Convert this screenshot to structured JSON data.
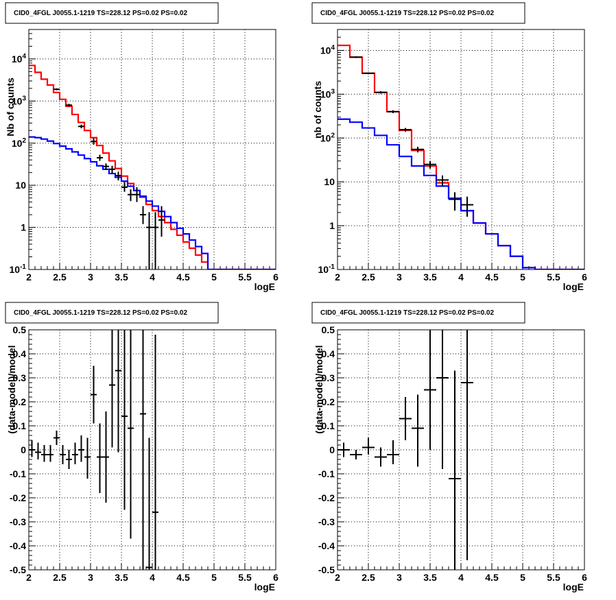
{
  "chart_data": [
    {
      "id": "p1",
      "type": "line",
      "title": "CID0_4FGL J0055.1-1219 TS=228.12 PS=0.02 PS=0.02",
      "xlabel": "logE",
      "ylabel": "Nb of counts",
      "yscale": "log",
      "xlim": [
        2,
        6
      ],
      "ylim": [
        0.1,
        50000
      ],
      "grid": true,
      "x_ticks": [
        "2",
        "2.5",
        "3",
        "3.5",
        "4",
        "4.5",
        "5",
        "5.5",
        "6"
      ],
      "y_ticks": [
        "10^-1",
        "1",
        "10",
        "10^2",
        "10^3",
        "10^4"
      ],
      "bin_edges": [
        2.0,
        2.1,
        2.2,
        2.3,
        2.4,
        2.5,
        2.6,
        2.7,
        2.8,
        2.9,
        3.0,
        3.1,
        3.2,
        3.3,
        3.4,
        3.5,
        3.6,
        3.7,
        3.8,
        3.9,
        4.0,
        4.1,
        4.2,
        4.3,
        4.4,
        4.5,
        4.6,
        4.7,
        4.8,
        4.9,
        5.0,
        5.1,
        5.2,
        5.3,
        5.4,
        5.5,
        5.6,
        5.7,
        5.8,
        5.9,
        6.0
      ],
      "series": [
        {
          "name": "",
          "color": "#ff0000",
          "style": "step",
          "values": [
            7000,
            4800,
            3300,
            2400,
            1600,
            1100,
            750,
            480,
            310,
            200,
            135,
            88,
            58,
            38,
            25,
            16.5,
            11,
            7.5,
            5.2,
            3.5,
            2.5,
            1.8,
            1.3,
            0.9,
            0.65,
            0.45,
            0.32,
            0.22,
            0.15,
            0.1,
            0.1,
            0.1,
            0.1,
            0.1,
            0.1,
            0.1,
            0.1,
            0.1,
            0.1,
            0.1
          ]
        },
        {
          "name": "",
          "color": "#0000ff",
          "style": "step",
          "values": [
            140,
            135,
            125,
            112,
            98,
            85,
            73,
            62,
            52,
            43,
            36,
            29,
            24,
            19,
            15.5,
            12.5,
            9.5,
            7.5,
            5.5,
            4.2,
            3.2,
            2.4,
            1.8,
            1.3,
            0.95,
            0.7,
            0.5,
            0.35,
            0.24,
            0.1,
            0.1,
            0.1,
            0.1,
            0.1,
            0.1,
            0.1,
            0.1,
            0.1,
            0.1,
            0.1
          ]
        },
        {
          "name": "",
          "color": "#000000",
          "style": "errorbar",
          "points": [
            {
              "x": 2.45,
              "y": 1900,
              "xerr": 0.05,
              "ylo": 1800,
              "yhi": 2000
            },
            {
              "x": 2.65,
              "y": 800,
              "xerr": 0.05,
              "ylo": 740,
              "yhi": 860
            },
            {
              "x": 2.85,
              "y": 250,
              "xerr": 0.05,
              "ylo": 225,
              "yhi": 275
            },
            {
              "x": 3.05,
              "y": 110,
              "xerr": 0.05,
              "ylo": 92,
              "yhi": 130
            },
            {
              "x": 3.15,
              "y": 45,
              "xerr": 0.05,
              "ylo": 38,
              "yhi": 53
            },
            {
              "x": 3.25,
              "y": 28,
              "xerr": 0.05,
              "ylo": 23,
              "yhi": 33
            },
            {
              "x": 3.35,
              "y": 24,
              "xerr": 0.05,
              "ylo": 19,
              "yhi": 29
            },
            {
              "x": 3.45,
              "y": 17,
              "xerr": 0.05,
              "ylo": 13,
              "yhi": 21
            },
            {
              "x": 3.55,
              "y": 9,
              "xerr": 0.05,
              "ylo": 7,
              "yhi": 12
            },
            {
              "x": 3.65,
              "y": 6,
              "xerr": 0.05,
              "ylo": 4.2,
              "yhi": 8
            },
            {
              "x": 3.75,
              "y": 6,
              "xerr": 0.05,
              "ylo": 4,
              "yhi": 9
            },
            {
              "x": 3.85,
              "y": 2,
              "xerr": 0.05,
              "ylo": 1.2,
              "yhi": 3.2
            },
            {
              "x": 3.95,
              "y": 1,
              "xerr": 0.05,
              "ylo": 0.1,
              "yhi": 2.3
            },
            {
              "x": 4.05,
              "y": 1,
              "xerr": 0.05,
              "ylo": 0.1,
              "yhi": 2.3
            },
            {
              "x": 4.15,
              "y": 1.5,
              "xerr": 0.05,
              "ylo": 0.6,
              "yhi": 3.2
            }
          ]
        }
      ]
    },
    {
      "id": "p2",
      "type": "line",
      "title": "CID0_4FGL J0055.1-1219 TS=228.12 PS=0.02 PS=0.02",
      "xlabel": "logE",
      "ylabel": "nb of counts",
      "yscale": "log",
      "xlim": [
        2,
        6
      ],
      "ylim": [
        0.1,
        30000
      ],
      "grid": true,
      "x_ticks": [
        "2",
        "2.5",
        "3",
        "3.5",
        "4",
        "4.5",
        "5",
        "5.5",
        "6"
      ],
      "y_ticks": [
        "10^-1",
        "1",
        "10",
        "10^2",
        "10^3",
        "10^4"
      ],
      "bin_edges": [
        2.0,
        2.2,
        2.4,
        2.6,
        2.8,
        3.0,
        3.2,
        3.4,
        3.6,
        3.8,
        4.0,
        4.2,
        4.4,
        4.6,
        4.8,
        5.0,
        5.2,
        5.4,
        5.6,
        5.8,
        6.0
      ],
      "series": [
        {
          "name": "",
          "color": "#ff0000",
          "style": "step",
          "values": [
            13000,
            7000,
            3000,
            1100,
            400,
            150,
            52,
            23,
            9.5,
            4.2,
            2.2,
            1.15,
            0.65,
            0.35,
            0.2,
            0.11,
            0.1,
            0.1,
            0.1,
            0.1
          ]
        },
        {
          "name": "",
          "color": "#0000ff",
          "style": "step",
          "values": [
            270,
            230,
            170,
            115,
            70,
            38,
            23,
            14,
            8,
            4.2,
            2.2,
            1.15,
            0.65,
            0.35,
            0.2,
            0.11,
            0.1,
            0.1,
            0.1,
            0.1
          ]
        },
        {
          "name": "",
          "color": "#000000",
          "style": "errorbar",
          "points": [
            {
              "x": 2.3,
              "y": 7000,
              "xerr": 0.1,
              "ylo": 6700,
              "yhi": 7300
            },
            {
              "x": 2.5,
              "y": 3000,
              "xerr": 0.1,
              "ylo": 2850,
              "yhi": 3150
            },
            {
              "x": 2.7,
              "y": 1100,
              "xerr": 0.1,
              "ylo": 1030,
              "yhi": 1170
            },
            {
              "x": 2.9,
              "y": 400,
              "xerr": 0.1,
              "ylo": 370,
              "yhi": 430
            },
            {
              "x": 3.1,
              "y": 155,
              "xerr": 0.1,
              "ylo": 140,
              "yhi": 170
            },
            {
              "x": 3.3,
              "y": 55,
              "xerr": 0.1,
              "ylo": 47,
              "yhi": 63
            },
            {
              "x": 3.5,
              "y": 25,
              "xerr": 0.1,
              "ylo": 20,
              "yhi": 30
            },
            {
              "x": 3.7,
              "y": 11,
              "xerr": 0.1,
              "ylo": 8,
              "yhi": 14
            },
            {
              "x": 3.9,
              "y": 4,
              "xerr": 0.1,
              "ylo": 2.2,
              "yhi": 5.8
            },
            {
              "x": 4.1,
              "y": 3,
              "xerr": 0.1,
              "ylo": 1.6,
              "yhi": 4.6
            }
          ]
        }
      ]
    },
    {
      "id": "p3",
      "type": "scatter",
      "title": "CID0_4FGL J0055.1-1219 TS=228.12 PS=0.02 PS=0.02",
      "xlabel": "logE",
      "ylabel": "(data-model)/model",
      "yscale": "linear",
      "xlim": [
        2,
        6
      ],
      "ylim": [
        -0.5,
        0.5
      ],
      "grid": true,
      "x_ticks": [
        "2",
        "2.5",
        "3",
        "3.5",
        "4",
        "4.5",
        "5",
        "5.5",
        "6"
      ],
      "y_ticks": [
        "-0.5",
        "-0.4",
        "-0.3",
        "-0.2",
        "-0.1",
        "0",
        "0.1",
        "0.2",
        "0.3",
        "0.4",
        "0.5"
      ],
      "series": [
        {
          "name": "",
          "color": "#000000",
          "style": "errorbar",
          "points": [
            {
              "x": 2.05,
              "y": 0.0,
              "xerr": 0.05,
              "ylo": -0.03,
              "yhi": 0.04
            },
            {
              "x": 2.15,
              "y": -0.01,
              "xerr": 0.05,
              "ylo": -0.04,
              "yhi": 0.03
            },
            {
              "x": 2.25,
              "y": -0.02,
              "xerr": 0.05,
              "ylo": -0.05,
              "yhi": 0.02
            },
            {
              "x": 2.35,
              "y": -0.02,
              "xerr": 0.05,
              "ylo": -0.05,
              "yhi": 0.02
            },
            {
              "x": 2.45,
              "y": 0.05,
              "xerr": 0.05,
              "ylo": 0.02,
              "yhi": 0.08
            },
            {
              "x": 2.55,
              "y": -0.02,
              "xerr": 0.05,
              "ylo": -0.06,
              "yhi": 0.02
            },
            {
              "x": 2.65,
              "y": -0.04,
              "xerr": 0.05,
              "ylo": -0.08,
              "yhi": 0.0
            },
            {
              "x": 2.75,
              "y": -0.02,
              "xerr": 0.05,
              "ylo": -0.06,
              "yhi": 0.03
            },
            {
              "x": 2.85,
              "y": 0.0,
              "xerr": 0.05,
              "ylo": -0.05,
              "yhi": 0.06
            },
            {
              "x": 2.95,
              "y": -0.03,
              "xerr": 0.05,
              "ylo": -0.12,
              "yhi": 0.05
            },
            {
              "x": 3.05,
              "y": 0.23,
              "xerr": 0.05,
              "ylo": 0.11,
              "yhi": 0.35
            },
            {
              "x": 3.15,
              "y": -0.03,
              "xerr": 0.05,
              "ylo": -0.18,
              "yhi": 0.11
            },
            {
              "x": 3.25,
              "y": -0.03,
              "xerr": 0.05,
              "ylo": -0.22,
              "yhi": 0.16
            },
            {
              "x": 3.35,
              "y": 0.27,
              "xerr": 0.05,
              "ylo": 0.01,
              "yhi": 0.5
            },
            {
              "x": 3.45,
              "y": 0.33,
              "xerr": 0.05,
              "ylo": -0.01,
              "yhi": 0.5
            },
            {
              "x": 3.55,
              "y": 0.14,
              "xerr": 0.05,
              "ylo": -0.25,
              "yhi": 0.5
            },
            {
              "x": 3.65,
              "y": 0.09,
              "xerr": 0.05,
              "ylo": -0.37,
              "yhi": 0.5
            },
            {
              "x": 3.85,
              "y": 0.15,
              "xerr": 0.05,
              "ylo": -0.5,
              "yhi": 0.5
            },
            {
              "x": 3.95,
              "y": -0.49,
              "xerr": 0.05,
              "ylo": -0.5,
              "yhi": 0.05
            },
            {
              "x": 4.05,
              "y": -0.26,
              "xerr": 0.05,
              "ylo": -0.5,
              "yhi": 0.48
            }
          ]
        }
      ]
    },
    {
      "id": "p4",
      "type": "scatter",
      "title": "CID0_4FGL J0055.1-1219 TS=228.12 PS=0.02 PS=0.02",
      "xlabel": "logE",
      "ylabel": "(data-model)/model",
      "yscale": "linear",
      "xlim": [
        2,
        6
      ],
      "ylim": [
        -0.5,
        0.5
      ],
      "grid": true,
      "x_ticks": [
        "2",
        "2.5",
        "3",
        "3.5",
        "4",
        "4.5",
        "5",
        "5.5",
        "6"
      ],
      "y_ticks": [
        "-0.5",
        "-0.4",
        "-0.3",
        "-0.2",
        "-0.1",
        "0",
        "0.1",
        "0.2",
        "0.3",
        "0.4",
        "0.5"
      ],
      "series": [
        {
          "name": "",
          "color": "#000000",
          "style": "errorbar",
          "points": [
            {
              "x": 2.1,
              "y": 0.0,
              "xerr": 0.1,
              "ylo": -0.03,
              "yhi": 0.03
            },
            {
              "x": 2.3,
              "y": -0.02,
              "xerr": 0.1,
              "ylo": -0.04,
              "yhi": 0.0
            },
            {
              "x": 2.5,
              "y": 0.01,
              "xerr": 0.1,
              "ylo": -0.02,
              "yhi": 0.05
            },
            {
              "x": 2.7,
              "y": -0.03,
              "xerr": 0.1,
              "ylo": -0.07,
              "yhi": 0.01
            },
            {
              "x": 2.9,
              "y": -0.02,
              "xerr": 0.1,
              "ylo": -0.06,
              "yhi": 0.04
            },
            {
              "x": 3.1,
              "y": 0.13,
              "xerr": 0.1,
              "ylo": 0.04,
              "yhi": 0.22
            },
            {
              "x": 3.3,
              "y": 0.09,
              "xerr": 0.1,
              "ylo": -0.07,
              "yhi": 0.23
            },
            {
              "x": 3.5,
              "y": 0.25,
              "xerr": 0.1,
              "ylo": 0.0,
              "yhi": 0.5
            },
            {
              "x": 3.7,
              "y": 0.3,
              "xerr": 0.1,
              "ylo": -0.08,
              "yhi": 0.5
            },
            {
              "x": 3.9,
              "y": -0.12,
              "xerr": 0.1,
              "ylo": -0.5,
              "yhi": 0.33
            },
            {
              "x": 4.1,
              "y": 0.28,
              "xerr": 0.1,
              "ylo": -0.46,
              "yhi": 0.5
            }
          ]
        }
      ]
    }
  ]
}
